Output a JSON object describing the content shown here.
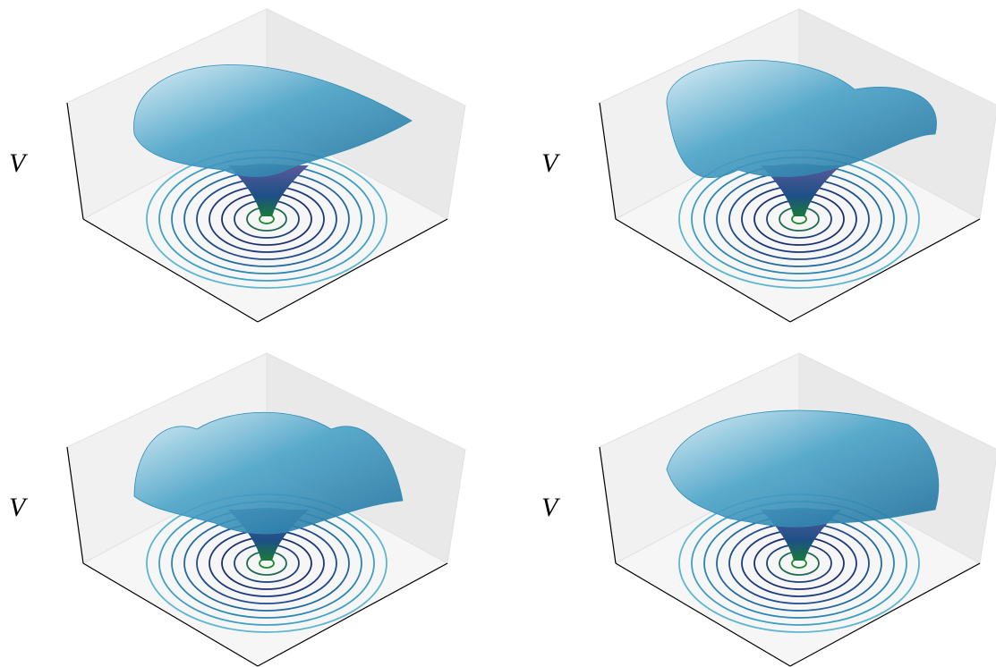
{
  "panels": [
    {
      "z_label": "V"
    },
    {
      "z_label": "V"
    },
    {
      "z_label": "V"
    },
    {
      "z_label": "V"
    }
  ]
}
